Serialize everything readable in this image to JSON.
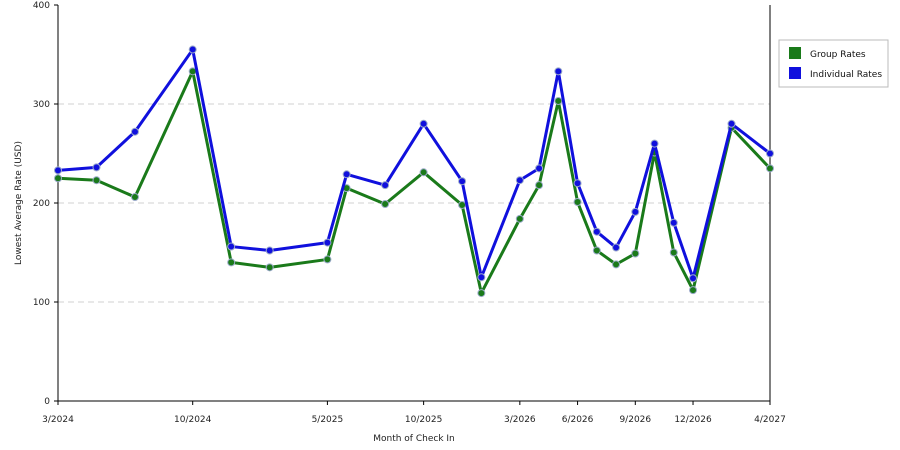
{
  "chart_data": {
    "type": "line",
    "title": "",
    "xlabel": "Month of Check In",
    "ylabel": "Lowest Average Rate (USD)",
    "ylim": [
      0,
      400
    ],
    "yticks": [
      0,
      100,
      200,
      300,
      400
    ],
    "grid": "horizontal dashed",
    "legend_position": "right",
    "x": [
      "3/2024",
      "4/2024",
      "5/2024",
      "6/2024",
      "7/2024",
      "8/2024",
      "9/2024",
      "10/2024",
      "11/2024",
      "12/2024",
      "1/2025",
      "2/2025",
      "3/2025",
      "4/2025",
      "5/2025",
      "6/2025",
      "7/2025",
      "8/2025",
      "9/2025",
      "10/2025",
      "11/2025",
      "12/2025",
      "1/2026",
      "2/2026",
      "3/2026",
      "4/2026",
      "5/2026",
      "6/2026",
      "7/2026",
      "8/2026",
      "9/2026",
      "10/2026",
      "11/2026",
      "12/2026",
      "1/2027",
      "2/2027",
      "3/2027",
      "4/2027"
    ],
    "x_tick_labels": [
      "3/2024",
      "10/2024",
      "5/2025",
      "10/2025",
      "3/2026",
      "6/2026",
      "9/2026",
      "12/2026",
      "4/2027"
    ],
    "series": [
      {
        "name": "Group Rates",
        "color": "#1a7a1a",
        "points": [
          {
            "x": "3/2024",
            "y": 225
          },
          {
            "x": "5/2024",
            "y": 223
          },
          {
            "x": "7/2024",
            "y": 206
          },
          {
            "x": "10/2024",
            "y": 333
          },
          {
            "x": "12/2024",
            "y": 140
          },
          {
            "x": "2/2025",
            "y": 135
          },
          {
            "x": "5/2025",
            "y": 143
          },
          {
            "x": "6/2025",
            "y": 215
          },
          {
            "x": "8/2025",
            "y": 199
          },
          {
            "x": "10/2025",
            "y": 231
          },
          {
            "x": "12/2025",
            "y": 198
          },
          {
            "x": "1/2026",
            "y": 109
          },
          {
            "x": "3/2026",
            "y": 184
          },
          {
            "x": "4/2026",
            "y": 218
          },
          {
            "x": "5/2026",
            "y": 303
          },
          {
            "x": "6/2026",
            "y": 201
          },
          {
            "x": "7/2026",
            "y": 152
          },
          {
            "x": "8/2026",
            "y": 138
          },
          {
            "x": "9/2026",
            "y": 149
          },
          {
            "x": "10/2026",
            "y": 251
          },
          {
            "x": "11/2026",
            "y": 150
          },
          {
            "x": "12/2026",
            "y": 112
          },
          {
            "x": "2/2027",
            "y": 276
          },
          {
            "x": "4/2027",
            "y": 235
          }
        ]
      },
      {
        "name": "Individual Rates",
        "color": "#1010dd",
        "points": [
          {
            "x": "3/2024",
            "y": 233
          },
          {
            "x": "5/2024",
            "y": 236
          },
          {
            "x": "7/2024",
            "y": 272
          },
          {
            "x": "10/2024",
            "y": 355
          },
          {
            "x": "12/2024",
            "y": 156
          },
          {
            "x": "2/2025",
            "y": 152
          },
          {
            "x": "5/2025",
            "y": 160
          },
          {
            "x": "6/2025",
            "y": 229
          },
          {
            "x": "8/2025",
            "y": 218
          },
          {
            "x": "10/2025",
            "y": 280
          },
          {
            "x": "12/2025",
            "y": 222
          },
          {
            "x": "1/2026",
            "y": 125
          },
          {
            "x": "3/2026",
            "y": 223
          },
          {
            "x": "4/2026",
            "y": 235
          },
          {
            "x": "5/2026",
            "y": 333
          },
          {
            "x": "6/2026",
            "y": 220
          },
          {
            "x": "7/2026",
            "y": 171
          },
          {
            "x": "8/2026",
            "y": 155
          },
          {
            "x": "9/2026",
            "y": 191
          },
          {
            "x": "10/2026",
            "y": 260
          },
          {
            "x": "11/2026",
            "y": 180
          },
          {
            "x": "12/2026",
            "y": 124
          },
          {
            "x": "2/2027",
            "y": 280
          },
          {
            "x": "4/2027",
            "y": 250
          }
        ]
      }
    ]
  }
}
